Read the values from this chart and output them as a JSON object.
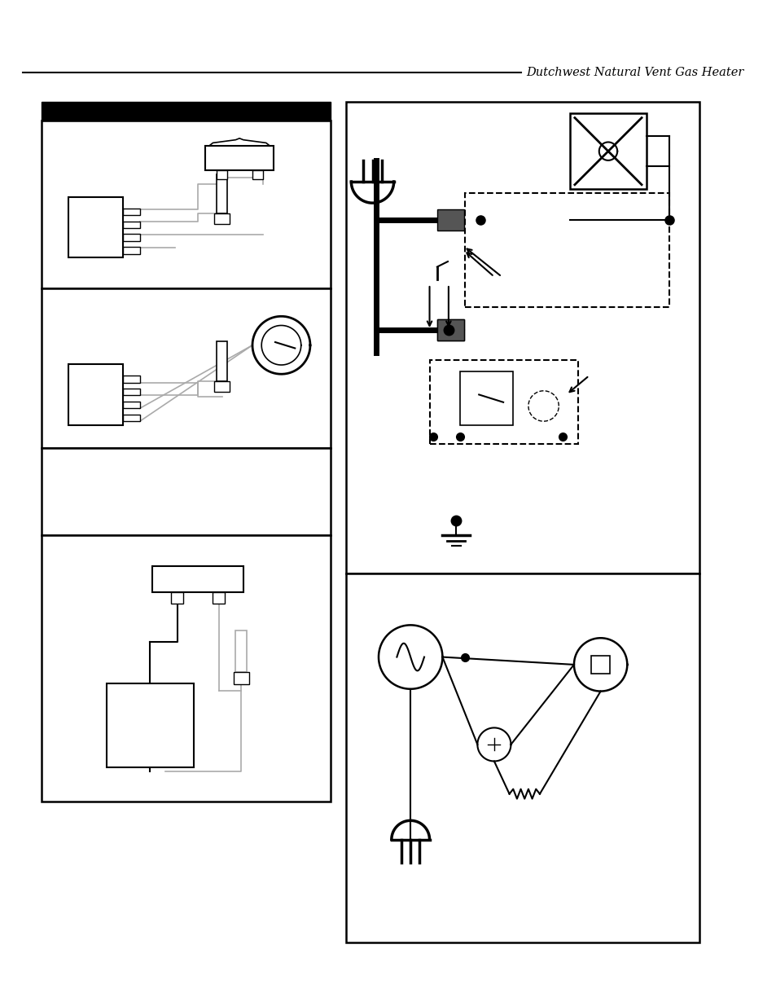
{
  "title": "Dutchwest Natural Vent Gas Heater",
  "bg_color": "#ffffff",
  "lc": "#000000",
  "gc": "#aaaaaa",
  "dark_gray": "#555555"
}
